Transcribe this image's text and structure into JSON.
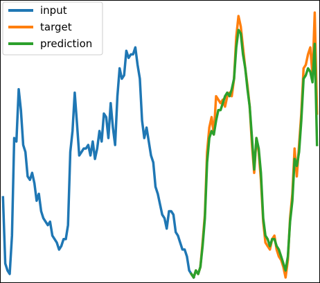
{
  "chart_data": {
    "type": "line",
    "grid": false,
    "legend_position": "top-left",
    "xlim": [
      -4,
      424
    ],
    "ylim": [
      0,
      390
    ],
    "series": [
      {
        "name": "input",
        "color": "#1f77b4",
        "x": [
          0,
          3,
          6,
          9,
          12,
          15,
          18,
          21,
          24,
          27,
          30,
          33,
          36,
          39,
          42,
          45,
          48,
          51,
          54,
          57,
          60,
          63,
          66,
          69,
          72,
          75,
          78,
          81,
          84,
          87,
          90,
          93,
          96,
          99,
          102,
          105,
          108,
          111,
          114,
          117,
          120,
          123,
          126,
          129,
          132,
          135,
          138,
          141,
          144,
          147,
          150,
          153,
          156,
          159,
          162,
          165,
          168,
          171,
          174,
          177,
          180,
          183,
          186,
          189,
          192,
          195,
          198,
          201,
          204,
          207,
          210,
          213,
          216,
          219,
          222,
          225,
          228,
          231,
          234,
          237,
          240,
          243,
          246,
          249,
          252,
          255
        ],
        "y": [
          115,
          20,
          10,
          5,
          60,
          200,
          195,
          270,
          240,
          190,
          180,
          145,
          140,
          150,
          135,
          110,
          120,
          95,
          85,
          80,
          75,
          80,
          60,
          55,
          50,
          40,
          45,
          55,
          55,
          75,
          180,
          210,
          265,
          220,
          175,
          180,
          185,
          185,
          190,
          175,
          195,
          170,
          185,
          210,
          195,
          235,
          230,
          200,
          250,
          215,
          190,
          260,
          300,
          285,
          290,
          325,
          315,
          320,
          320,
          330,
          305,
          285,
          225,
          200,
          215,
          195,
          175,
          165,
          130,
          120,
          105,
          90,
          85,
          70,
          95,
          95,
          90,
          65,
          60,
          50,
          40,
          40,
          30,
          10,
          5,
          0
        ]
      },
      {
        "name": "target",
        "color": "#ff7f0e",
        "x": [
          252,
          255,
          258,
          261,
          264,
          267,
          270,
          273,
          276,
          279,
          282,
          285,
          288,
          291,
          294,
          297,
          300,
          303,
          306,
          309,
          312,
          315,
          318,
          321,
          324,
          327,
          330,
          333,
          336,
          339,
          342,
          345,
          348,
          351,
          354,
          357,
          360,
          363,
          366,
          369,
          372,
          375,
          378,
          381,
          384,
          387,
          390,
          393,
          396,
          399,
          402,
          405,
          408,
          411,
          414,
          417,
          420
        ],
        "y": [
          5,
          0,
          10,
          5,
          15,
          50,
          90,
          180,
          215,
          230,
          205,
          260,
          255,
          250,
          255,
          245,
          260,
          265,
          260,
          285,
          345,
          375,
          360,
          330,
          300,
          275,
          245,
          190,
          150,
          200,
          180,
          140,
          80,
          50,
          45,
          40,
          55,
          60,
          40,
          30,
          25,
          15,
          0,
          25,
          85,
          120,
          185,
          145,
          190,
          235,
          300,
          305,
          320,
          330,
          290,
          380,
          235
        ]
      },
      {
        "name": "prediction",
        "color": "#2ca02c",
        "x": [
          252,
          255,
          258,
          261,
          264,
          267,
          270,
          273,
          276,
          279,
          282,
          285,
          288,
          291,
          294,
          297,
          300,
          303,
          306,
          309,
          312,
          315,
          318,
          321,
          324,
          327,
          330,
          333,
          336,
          339,
          342,
          345,
          348,
          351,
          354,
          357,
          360,
          363,
          366,
          369,
          372,
          375,
          378,
          381,
          384,
          387,
          390,
          393,
          396,
          399,
          402,
          405,
          408,
          411,
          414,
          417,
          420
        ],
        "y": [
          5,
          0,
          10,
          5,
          15,
          45,
          85,
          165,
          200,
          210,
          205,
          225,
          240,
          240,
          250,
          260,
          265,
          260,
          270,
          285,
          330,
          355,
          350,
          320,
          300,
          270,
          245,
          200,
          155,
          200,
          185,
          150,
          85,
          60,
          55,
          45,
          55,
          55,
          45,
          40,
          30,
          20,
          10,
          30,
          80,
          110,
          170,
          160,
          180,
          225,
          285,
          290,
          300,
          295,
          280,
          335,
          190
        ]
      }
    ]
  }
}
